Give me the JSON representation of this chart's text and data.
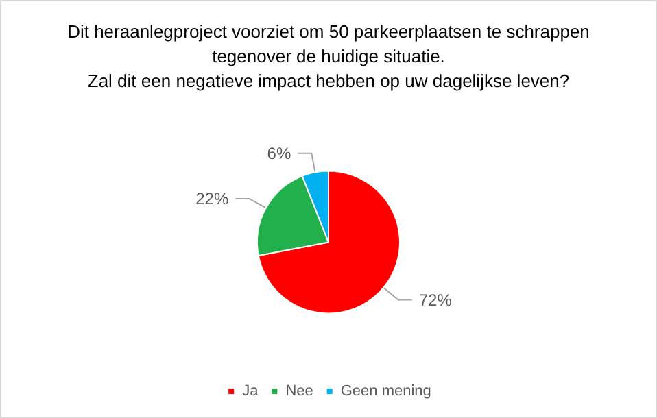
{
  "chart_data": {
    "type": "pie",
    "title": "Dit heraanlegproject voorziet om 50 parkeerplaatsen te schrappen\ntegenover de huidige situatie.\nZal dit een negatieve impact hebben op uw dagelijkse leven?",
    "categories": [
      "Ja",
      "Nee",
      "Geen mening"
    ],
    "values": [
      72,
      22,
      6
    ],
    "value_labels": [
      "72%",
      "22%",
      "6%"
    ],
    "colors": [
      "#ff0000",
      "#21b04b",
      "#00b0f0"
    ],
    "legend": "bottom"
  }
}
